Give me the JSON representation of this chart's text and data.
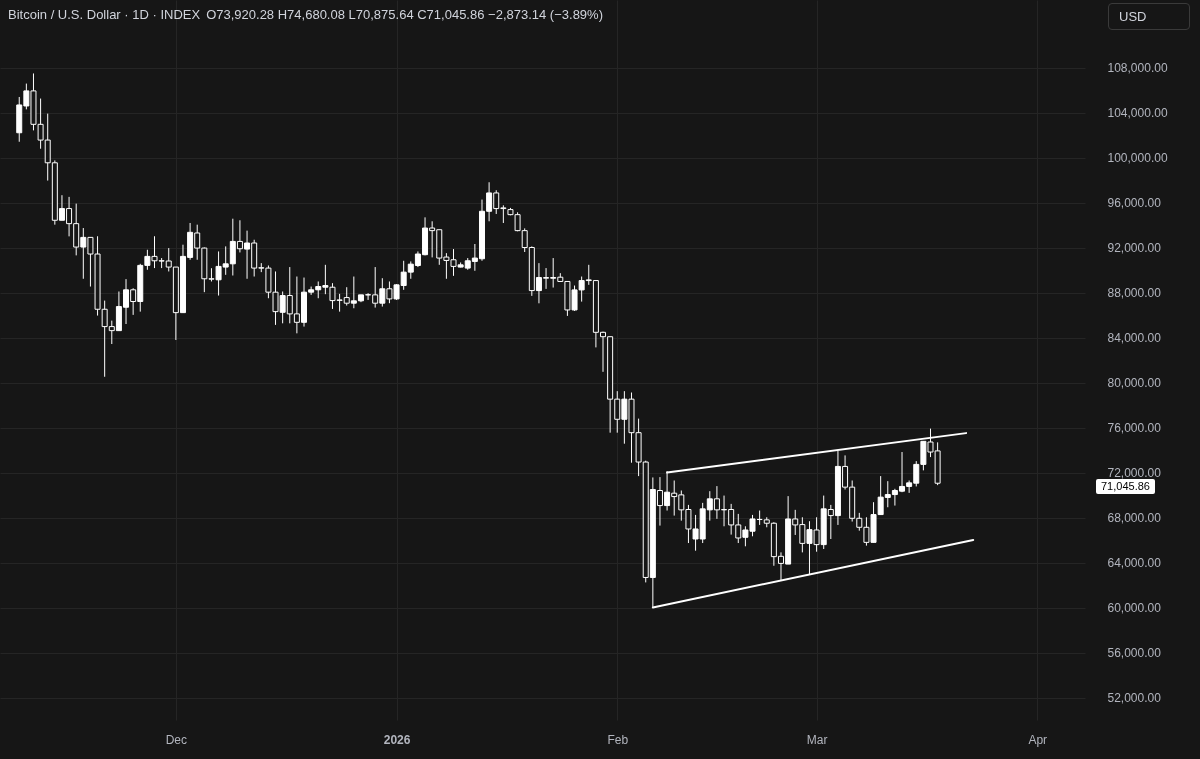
{
  "chart_data": {
    "type": "candlestick",
    "title": "Bitcoin / U.S. Dollar · 1D · INDEX",
    "annotations": [
      "O73,920.28 H74,680.08 L70,875.64 C71,045.86 −2,873.14 (−3.89%)",
      "USD",
      "71,045.86"
    ],
    "color": "#ffffff",
    "grid": true,
    "xlim": [
      "2025-11-07",
      "2026-04-07"
    ],
    "ylim": [
      50000,
      114000
    ],
    "xticks": [
      {
        "value": "2025-12-01",
        "label": "Dec"
      },
      {
        "value": "2026-01-01",
        "label": "2026"
      },
      {
        "value": "2026-02-01",
        "label": "Feb"
      },
      {
        "value": "2026-03-01",
        "label": "Mar"
      },
      {
        "value": "2026-04-01",
        "label": "Apr"
      }
    ],
    "yticks": [
      {
        "value": 52000,
        "label": "52,000.00"
      },
      {
        "value": 56000,
        "label": "56,000.00"
      },
      {
        "value": 60000,
        "label": "60,000.00"
      },
      {
        "value": 64000,
        "label": "64,000.00"
      },
      {
        "value": 68000,
        "label": "68,000.00"
      },
      {
        "value": 72000,
        "label": "72,000.00"
      },
      {
        "value": 76000,
        "label": "76,000.00"
      },
      {
        "value": 80000,
        "label": "80,000.00"
      },
      {
        "value": 84000,
        "label": "84,000.00"
      },
      {
        "value": 88000,
        "label": "88,000.00"
      },
      {
        "value": 92000,
        "label": "92,000.00"
      },
      {
        "value": 96000,
        "label": "96,000.00"
      },
      {
        "value": 100000,
        "label": "100,000.00"
      },
      {
        "value": 104000,
        "label": "104,000.00"
      },
      {
        "value": 108000,
        "label": "108,000.00"
      }
    ],
    "x": [
      "2025-11-09",
      "2025-11-10",
      "2025-11-11",
      "2025-11-12",
      "2025-11-13",
      "2025-11-14",
      "2025-11-15",
      "2025-11-16",
      "2025-11-17",
      "2025-11-18",
      "2025-11-19",
      "2025-11-20",
      "2025-11-21",
      "2025-11-22",
      "2025-11-23",
      "2025-11-24",
      "2025-11-25",
      "2025-11-26",
      "2025-11-27",
      "2025-11-28",
      "2025-11-29",
      "2025-11-30",
      "2025-12-01",
      "2025-12-02",
      "2025-12-03",
      "2025-12-04",
      "2025-12-05",
      "2025-12-06",
      "2025-12-07",
      "2025-12-08",
      "2025-12-09",
      "2025-12-10",
      "2025-12-11",
      "2025-12-12",
      "2025-12-13",
      "2025-12-14",
      "2025-12-15",
      "2025-12-16",
      "2025-12-17",
      "2025-12-18",
      "2025-12-19",
      "2025-12-20",
      "2025-12-21",
      "2025-12-22",
      "2025-12-23",
      "2025-12-24",
      "2025-12-25",
      "2025-12-26",
      "2025-12-27",
      "2025-12-28",
      "2025-12-29",
      "2025-12-30",
      "2025-12-31",
      "2026-01-01",
      "2026-01-02",
      "2026-01-03",
      "2026-01-04",
      "2026-01-05",
      "2026-01-06",
      "2026-01-07",
      "2026-01-08",
      "2026-01-09",
      "2026-01-10",
      "2026-01-11",
      "2026-01-12",
      "2026-01-13",
      "2026-01-14",
      "2026-01-15",
      "2026-01-16",
      "2026-01-17",
      "2026-01-18",
      "2026-01-19",
      "2026-01-20",
      "2026-01-21",
      "2026-01-22",
      "2026-01-23",
      "2026-01-24",
      "2026-01-25",
      "2026-01-26",
      "2026-01-27",
      "2026-01-28",
      "2026-01-29",
      "2026-01-30",
      "2026-01-31",
      "2026-02-01",
      "2026-02-02",
      "2026-02-03",
      "2026-02-04",
      "2026-02-05",
      "2026-02-06",
      "2026-02-07",
      "2026-02-08",
      "2026-02-09",
      "2026-02-10",
      "2026-02-11",
      "2026-02-12",
      "2026-02-13",
      "2026-02-14",
      "2026-02-15",
      "2026-02-16",
      "2026-02-17",
      "2026-02-18",
      "2026-02-19",
      "2026-02-20",
      "2026-02-21",
      "2026-02-22",
      "2026-02-23",
      "2026-02-24",
      "2026-02-25",
      "2026-02-26",
      "2026-02-27",
      "2026-02-28",
      "2026-03-01",
      "2026-03-02",
      "2026-03-03",
      "2026-03-04",
      "2026-03-05",
      "2026-03-06",
      "2026-03-07",
      "2026-03-08",
      "2026-03-09",
      "2026-03-10",
      "2026-03-11",
      "2026-03-12",
      "2026-03-13",
      "2026-03-14",
      "2026-03-15",
      "2026-03-16",
      "2026-03-17",
      "2026-03-18"
    ],
    "ohlc": [
      [
        102200,
        105380,
        101400,
        104670
      ],
      [
        104580,
        106570,
        104280,
        105920
      ],
      [
        105920,
        107470,
        102410,
        102950
      ],
      [
        102950,
        105240,
        100780,
        101550
      ],
      [
        101550,
        103900,
        97950,
        99530
      ],
      [
        99530,
        99740,
        94030,
        94420
      ],
      [
        94420,
        96650,
        94420,
        95460
      ],
      [
        95460,
        96500,
        92990,
        94120
      ],
      [
        94120,
        95900,
        91300,
        92040
      ],
      [
        92040,
        93730,
        89220,
        92900
      ],
      [
        92900,
        92900,
        88530,
        91420
      ],
      [
        91420,
        93000,
        85950,
        86510
      ],
      [
        86510,
        87280,
        80510,
        84970
      ],
      [
        84970,
        85500,
        83420,
        84610
      ],
      [
        84610,
        88090,
        84610,
        86750
      ],
      [
        86690,
        89190,
        85200,
        88240
      ],
      [
        88240,
        88380,
        86010,
        87200
      ],
      [
        87200,
        90550,
        86300,
        90410
      ],
      [
        90410,
        91800,
        90020,
        91210
      ],
      [
        91210,
        93000,
        90170,
        90820
      ],
      [
        90820,
        91060,
        90170,
        90800
      ],
      [
        90800,
        91950,
        89870,
        90260
      ],
      [
        90260,
        90260,
        83780,
        86210
      ],
      [
        86210,
        92250,
        86210,
        91210
      ],
      [
        91120,
        94180,
        90910,
        93350
      ],
      [
        93290,
        94030,
        90910,
        91950
      ],
      [
        91950,
        92000,
        88030,
        89220
      ],
      [
        89220,
        90160,
        88980,
        89190
      ],
      [
        89130,
        91650,
        87730,
        90320
      ],
      [
        90260,
        92100,
        89570,
        90550
      ],
      [
        90550,
        94560,
        89510,
        92540
      ],
      [
        92540,
        94420,
        91560,
        91890
      ],
      [
        91860,
        93500,
        89220,
        92400
      ],
      [
        92400,
        92690,
        89420,
        90170
      ],
      [
        90200,
        90610,
        89810,
        90170
      ],
      [
        90170,
        90400,
        87490,
        88030
      ],
      [
        88030,
        89870,
        85120,
        86300
      ],
      [
        86240,
        88090,
        85260,
        87730
      ],
      [
        87730,
        90260,
        85260,
        86100
      ],
      [
        86100,
        89420,
        84370,
        85350
      ],
      [
        85350,
        89330,
        84970,
        88030
      ],
      [
        88030,
        88530,
        87790,
        88240
      ],
      [
        88240,
        88980,
        87490,
        88530
      ],
      [
        88470,
        90460,
        87850,
        88620
      ],
      [
        88470,
        88830,
        86540,
        87280
      ],
      [
        87340,
        87880,
        86300,
        87300
      ],
      [
        87550,
        88470,
        86840,
        87050
      ],
      [
        87050,
        89420,
        86600,
        87260
      ],
      [
        87260,
        87790,
        87140,
        87790
      ],
      [
        87790,
        87940,
        87340,
        87800
      ],
      [
        87790,
        90260,
        86660,
        87050
      ],
      [
        87050,
        89270,
        86750,
        88330
      ],
      [
        88330,
        88980,
        87050,
        87430
      ],
      [
        87430,
        88740,
        87340,
        88680
      ],
      [
        88620,
        90820,
        88240,
        89810
      ],
      [
        89810,
        90760,
        89220,
        90520
      ],
      [
        90400,
        91650,
        90260,
        91420
      ],
      [
        91360,
        94680,
        91300,
        93730
      ],
      [
        93730,
        94330,
        91120,
        93500
      ],
      [
        93580,
        93580,
        90460,
        91060
      ],
      [
        91150,
        91500,
        89220,
        90850
      ],
      [
        90910,
        91860,
        89480,
        90320
      ],
      [
        90260,
        90670,
        90230,
        90460
      ],
      [
        90170,
        91060,
        90020,
        90820
      ],
      [
        90760,
        92310,
        89930,
        91060
      ],
      [
        91000,
        96260,
        90820,
        95220
      ],
      [
        95220,
        97800,
        94330,
        96850
      ],
      [
        96850,
        97090,
        94980,
        95460
      ],
      [
        95520,
        95750,
        94180,
        95460
      ],
      [
        95370,
        95520,
        94860,
        94920
      ],
      [
        94920,
        95130,
        93440,
        93500
      ],
      [
        93500,
        93700,
        91600,
        92000
      ],
      [
        92000,
        92100,
        87700,
        88170
      ],
      [
        88170,
        90610,
        87040,
        89330
      ],
      [
        89330,
        90170,
        88320,
        89270
      ],
      [
        89270,
        91060,
        88440,
        89330
      ],
      [
        89360,
        89720,
        88980,
        88980
      ],
      [
        88980,
        88980,
        85920,
        86450
      ],
      [
        86450,
        88620,
        86360,
        88230
      ],
      [
        88230,
        89420,
        87190,
        89060
      ],
      [
        89060,
        90460,
        88680,
        89120
      ],
      [
        89060,
        89060,
        83120,
        84460
      ],
      [
        84460,
        84520,
        80950,
        84070
      ],
      [
        84070,
        84070,
        75540,
        78520
      ],
      [
        78520,
        79230,
        75540,
        76730
      ],
      [
        76730,
        79230,
        74560,
        78520
      ],
      [
        78520,
        79110,
        72870,
        75540
      ],
      [
        75540,
        76790,
        71680,
        72930
      ],
      [
        72930,
        73050,
        62230,
        62670
      ],
      [
        62670,
        71560,
        60000,
        70490
      ],
      [
        70400,
        71590,
        67280,
        69060
      ],
      [
        69060,
        72120,
        68620,
        70250
      ],
      [
        70160,
        71290,
        68170,
        69860
      ],
      [
        70010,
        70400,
        67720,
        68680
      ],
      [
        68710,
        69120,
        65730,
        66980
      ],
      [
        66090,
        68230,
        65050,
        66980
      ],
      [
        66090,
        69300,
        65730,
        68770
      ],
      [
        68680,
        70340,
        67720,
        69660
      ],
      [
        69660,
        70790,
        67880,
        68680
      ],
      [
        68710,
        69950,
        67220,
        68680
      ],
      [
        68710,
        69210,
        66480,
        67340
      ],
      [
        67340,
        68320,
        65730,
        66180
      ],
      [
        66240,
        67220,
        65440,
        66890
      ],
      [
        66780,
        68230,
        66330,
        67870
      ],
      [
        67820,
        68620,
        67340,
        67830
      ],
      [
        67790,
        68020,
        67130,
        67490
      ],
      [
        67490,
        67580,
        63710,
        64520
      ],
      [
        64550,
        64900,
        62380,
        63920
      ],
      [
        63860,
        69900,
        63860,
        67870
      ],
      [
        67870,
        68680,
        66450,
        67340
      ],
      [
        67370,
        68020,
        64900,
        65700
      ],
      [
        65700,
        67670,
        62970,
        66920
      ],
      [
        66890,
        68020,
        64960,
        65590
      ],
      [
        65590,
        69950,
        65200,
        68770
      ],
      [
        68710,
        69120,
        66090,
        68170
      ],
      [
        68170,
        73910,
        67340,
        72540
      ],
      [
        72540,
        73520,
        70490,
        70700
      ],
      [
        70700,
        71290,
        67640,
        67930
      ],
      [
        67930,
        68410,
        66830,
        67130
      ],
      [
        67130,
        68020,
        65500,
        65790
      ],
      [
        65790,
        69360,
        65790,
        68260
      ],
      [
        68260,
        71680,
        68260,
        69810
      ],
      [
        69780,
        71230,
        68910,
        70040
      ],
      [
        70040,
        70550,
        69060,
        70400
      ],
      [
        70340,
        73820,
        70250,
        70760
      ],
      [
        70760,
        71290,
        70190,
        71080
      ],
      [
        71050,
        73010,
        70760,
        72720
      ],
      [
        72720,
        74770,
        72190,
        74770
      ],
      [
        74710,
        75900,
        73370,
        73820
      ],
      [
        73920.28,
        74680.08,
        70875.64,
        71045.86
      ]
    ],
    "series": [
      {
        "type": "line",
        "color": "#ffffff",
        "x": [
          "2026-02-08",
          "2026-03-22"
        ],
        "values": [
          72000,
          75500
        ]
      },
      {
        "type": "line",
        "color": "#ffffff",
        "x": [
          "2026-02-06",
          "2026-03-23"
        ],
        "values": [
          60000,
          66000
        ]
      }
    ]
  }
}
